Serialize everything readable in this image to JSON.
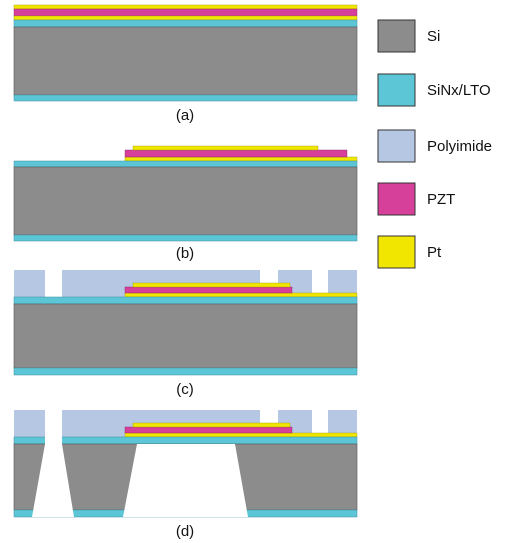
{
  "panels": [
    {
      "label": "(a)"
    },
    {
      "label": "(b)"
    },
    {
      "label": "(c)"
    },
    {
      "label": "(d)"
    }
  ],
  "legend": [
    {
      "label": "Si"
    },
    {
      "label": "SiNx/LTO"
    },
    {
      "label": "Polyimide"
    },
    {
      "label": "PZT"
    },
    {
      "label": "Pt"
    }
  ]
}
